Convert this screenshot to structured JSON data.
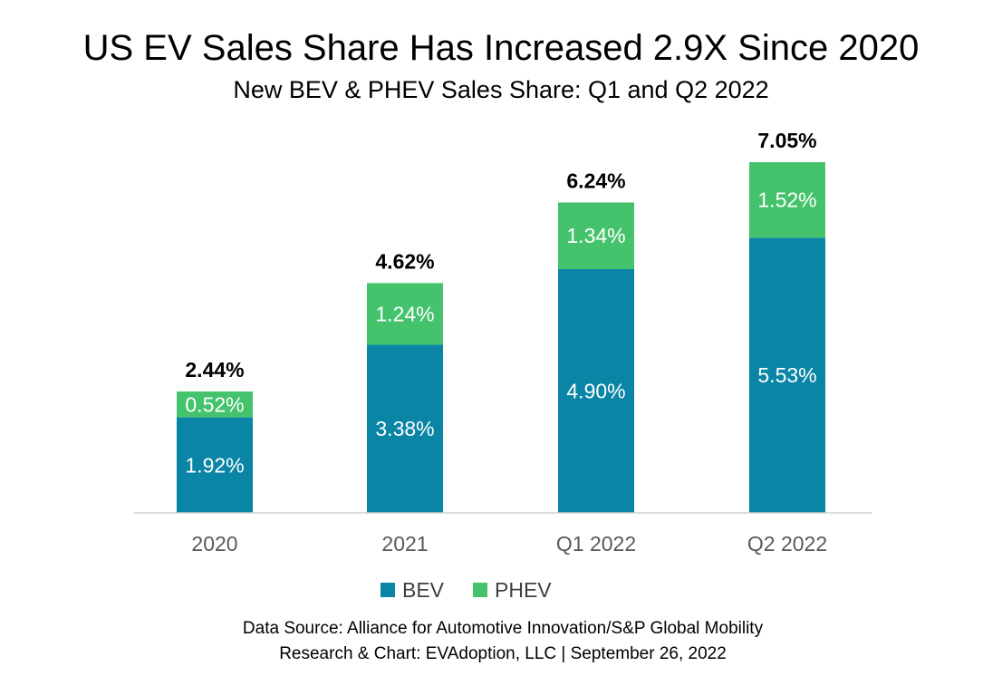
{
  "chart_data": {
    "type": "bar",
    "stacked": true,
    "title": "US EV Sales Share Has Increased 2.9X Since 2020",
    "subtitle": "New BEV & PHEV Sales Share: Q1 and Q2 2022",
    "categories": [
      "2020",
      "2021",
      "Q1 2022",
      "Q2 2022"
    ],
    "series": [
      {
        "name": "BEV",
        "values": [
          1.92,
          3.38,
          4.9,
          5.53
        ],
        "labels": [
          "1.92%",
          "3.38%",
          "4.90%",
          "5.53%"
        ],
        "color": "#0A85A6"
      },
      {
        "name": "PHEV",
        "values": [
          0.52,
          1.24,
          1.34,
          1.52
        ],
        "labels": [
          "0.52%",
          "1.24%",
          "1.34%",
          "1.52%"
        ],
        "color": "#44C36C"
      }
    ],
    "totals": [
      "2.44%",
      "4.62%",
      "6.24%",
      "7.05%"
    ],
    "total_values": [
      2.44,
      4.62,
      6.24,
      7.05
    ],
    "ylim": [
      0,
      7.05
    ],
    "grid": false,
    "legend_position": "bottom"
  },
  "footer": {
    "source_line": "Data Source: Alliance for Automotive Innovation/S&P Global Mobility",
    "credit_line": "Research & Chart: EVAdoption, LLC | September 26, 2022"
  }
}
